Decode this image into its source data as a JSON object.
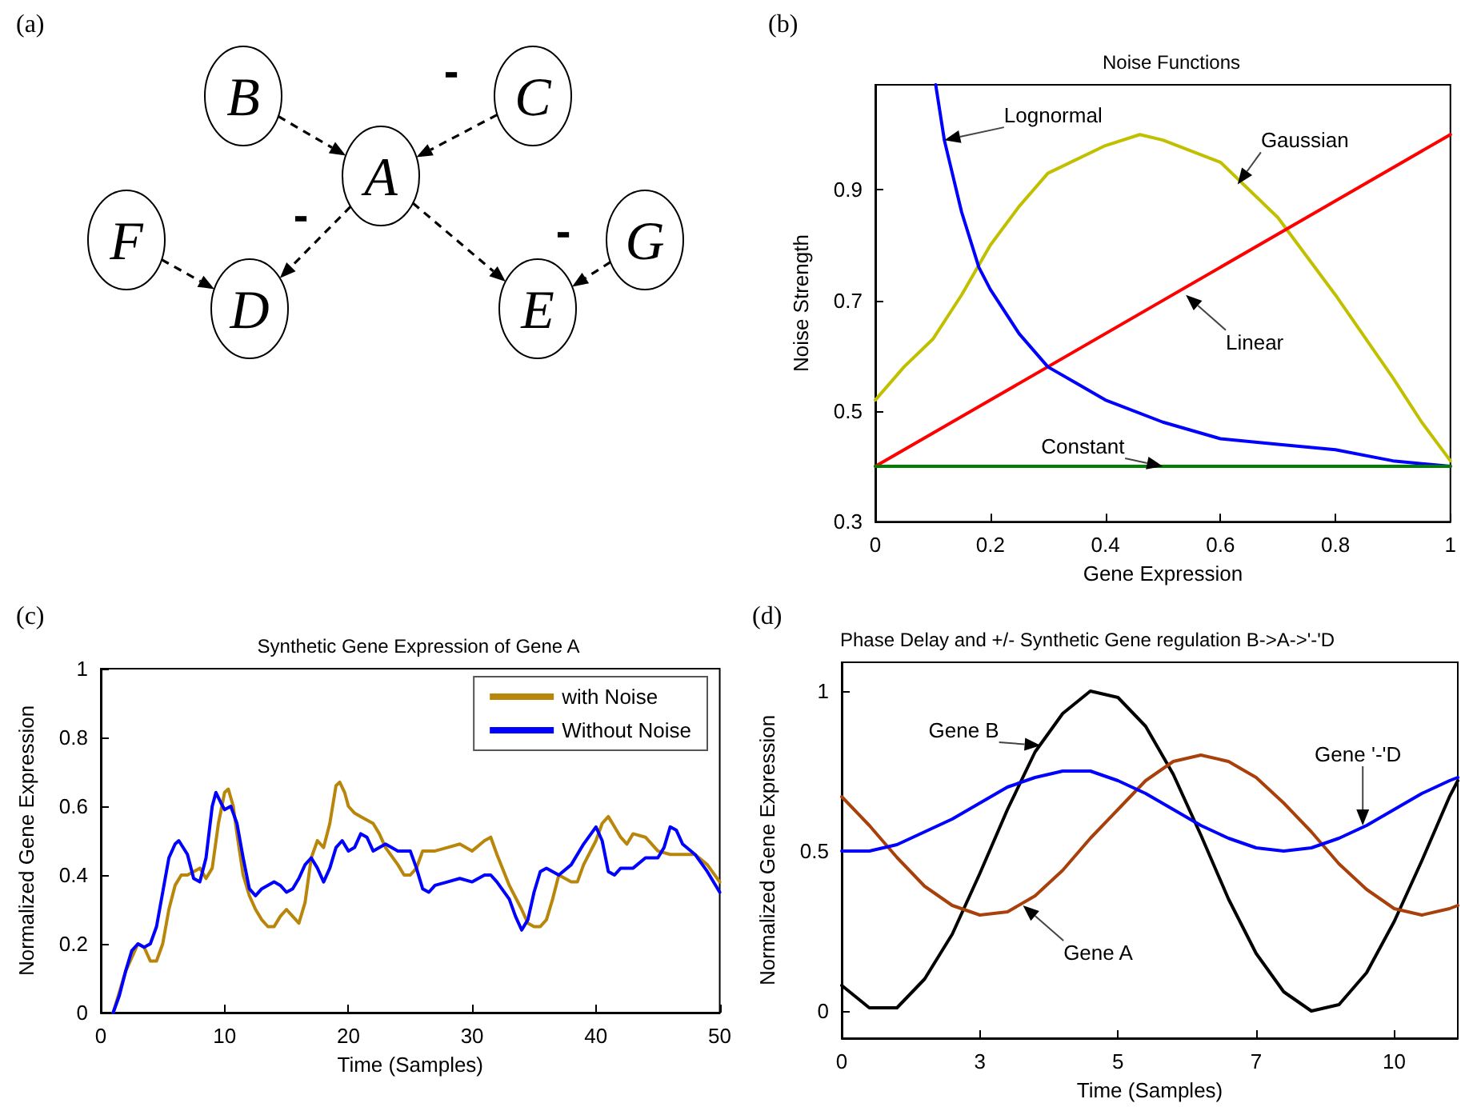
{
  "chart_data": [
    {
      "type": "other",
      "annotations": [
        "(a)",
        "A",
        "B",
        "C",
        "D",
        "E",
        "F",
        "G",
        "-",
        "-",
        "-"
      ]
    },
    {
      "type": "line",
      "title": "Noise Functions",
      "xlabel": "Gene Expression",
      "ylabel": "Noise Strength",
      "xlim": [
        0,
        1
      ],
      "ylim": [
        0.3,
        1.09
      ],
      "xticks": [
        0,
        0.2,
        0.4,
        0.6,
        0.8,
        1
      ],
      "yticks": [
        0.3,
        0.5,
        0.7,
        0.9
      ],
      "series": [
        {
          "color": "#c0c000",
          "x": [
            0,
            0.05,
            0.1,
            0.15,
            0.2,
            0.25,
            0.3,
            0.4,
            0.46,
            0.5,
            0.6,
            0.7,
            0.8,
            0.9,
            0.95,
            1
          ],
          "values": [
            0.52,
            0.58,
            0.63,
            0.71,
            0.8,
            0.87,
            0.93,
            0.98,
            1.0,
            0.99,
            0.95,
            0.85,
            0.71,
            0.56,
            0.48,
            0.41
          ]
        },
        {
          "color": "#ff0000",
          "x": [
            0,
            1
          ],
          "values": [
            0.4,
            1.0
          ]
        },
        {
          "color": "#0000ff",
          "x": [
            0.105,
            0.12,
            0.15,
            0.18,
            0.2,
            0.25,
            0.3,
            0.35,
            0.4,
            0.5,
            0.6,
            0.7,
            0.8,
            0.9,
            1
          ],
          "values": [
            1.09,
            0.99,
            0.86,
            0.76,
            0.72,
            0.64,
            0.58,
            0.55,
            0.52,
            0.48,
            0.45,
            0.44,
            0.43,
            0.41,
            0.4
          ]
        },
        {
          "color": "#008000",
          "x": [
            0,
            1
          ],
          "values": [
            0.4,
            0.4
          ]
        }
      ],
      "annotations": [
        "(b)",
        {
          "text": "Lognormal",
          "x": 0.12,
          "y": 0.99
        },
        {
          "text": "Gaussian",
          "x": 0.63,
          "y": 0.91
        },
        {
          "text": "Linear",
          "x": 0.54,
          "y": 0.71
        },
        {
          "text": "Constant",
          "x": 0.5,
          "y": 0.4
        }
      ]
    },
    {
      "type": "line",
      "title": "Synthetic Gene Expression of Gene A",
      "xlabel": "Time (Samples)",
      "ylabel": "Normalized Gene Expression",
      "xlim": [
        0,
        50
      ],
      "ylim": [
        0,
        1
      ],
      "xticks": [
        0,
        10,
        20,
        30,
        40,
        50
      ],
      "yticks": [
        0,
        0.2,
        0.4,
        0.6,
        0.8,
        1
      ],
      "legend": "top right",
      "series": [
        {
          "name": "with Noise",
          "color": "#b8860b",
          "x": [
            1,
            2,
            3,
            3.5,
            4,
            4.5,
            5,
            5.5,
            6,
            6.5,
            7,
            8,
            8.5,
            9,
            9.5,
            10,
            10.3,
            10.7,
            11,
            11.5,
            12,
            12.5,
            13,
            13.5,
            14,
            14.5,
            15,
            15.5,
            16,
            16.5,
            17,
            17.5,
            18,
            18.5,
            19,
            19.3,
            19.7,
            20,
            20.5,
            21,
            22,
            22.5,
            23,
            24,
            24.5,
            25,
            25.5,
            26,
            27,
            28,
            29,
            30,
            31,
            31.5,
            32,
            33,
            34,
            34.5,
            35,
            35.5,
            36,
            36.5,
            37,
            38,
            38.5,
            39,
            40,
            40.5,
            41,
            42,
            42.5,
            43,
            44,
            45,
            46,
            47,
            48,
            49,
            50
          ],
          "values": [
            0,
            0.12,
            0.2,
            0.19,
            0.15,
            0.15,
            0.2,
            0.3,
            0.37,
            0.4,
            0.4,
            0.42,
            0.39,
            0.42,
            0.55,
            0.64,
            0.65,
            0.6,
            0.52,
            0.4,
            0.34,
            0.3,
            0.27,
            0.25,
            0.25,
            0.28,
            0.3,
            0.28,
            0.26,
            0.32,
            0.45,
            0.5,
            0.48,
            0.55,
            0.66,
            0.67,
            0.64,
            0.6,
            0.58,
            0.57,
            0.55,
            0.52,
            0.48,
            0.43,
            0.4,
            0.4,
            0.42,
            0.47,
            0.47,
            0.48,
            0.49,
            0.47,
            0.5,
            0.51,
            0.46,
            0.37,
            0.3,
            0.26,
            0.25,
            0.25,
            0.27,
            0.33,
            0.4,
            0.38,
            0.38,
            0.43,
            0.5,
            0.55,
            0.57,
            0.51,
            0.49,
            0.52,
            0.51,
            0.47,
            0.46,
            0.46,
            0.46,
            0.43,
            0.38
          ]
        },
        {
          "name": "Without Noise",
          "color": "#0000ff",
          "x": [
            1,
            1.5,
            2,
            2.5,
            3,
            3.5,
            4,
            4.5,
            5,
            5.5,
            6,
            6.3,
            7,
            7.5,
            8,
            8.5,
            9,
            9.3,
            9.7,
            10,
            10.5,
            11,
            11.5,
            12,
            12.5,
            13,
            14,
            14.5,
            15,
            15.5,
            16,
            16.5,
            17,
            17.5,
            18,
            18.5,
            19,
            19.5,
            20,
            20.5,
            21,
            21.5,
            22,
            23,
            24,
            25,
            25.5,
            26,
            26.5,
            27,
            28,
            29,
            30,
            31,
            31.5,
            32,
            33,
            33.5,
            34,
            34.5,
            35,
            35.5,
            36,
            37,
            38,
            39,
            40,
            40.5,
            41,
            41.5,
            42,
            43,
            44,
            45,
            45.5,
            46,
            46.5,
            47,
            48,
            49,
            50
          ],
          "values": [
            0,
            0.05,
            0.12,
            0.18,
            0.2,
            0.19,
            0.2,
            0.25,
            0.35,
            0.45,
            0.49,
            0.5,
            0.46,
            0.39,
            0.38,
            0.45,
            0.6,
            0.64,
            0.61,
            0.59,
            0.6,
            0.55,
            0.45,
            0.36,
            0.34,
            0.36,
            0.38,
            0.37,
            0.35,
            0.36,
            0.39,
            0.43,
            0.45,
            0.42,
            0.38,
            0.42,
            0.48,
            0.5,
            0.47,
            0.48,
            0.52,
            0.51,
            0.47,
            0.49,
            0.47,
            0.47,
            0.42,
            0.36,
            0.35,
            0.37,
            0.38,
            0.39,
            0.38,
            0.4,
            0.4,
            0.38,
            0.33,
            0.28,
            0.24,
            0.27,
            0.35,
            0.41,
            0.42,
            0.4,
            0.43,
            0.49,
            0.54,
            0.5,
            0.41,
            0.4,
            0.42,
            0.42,
            0.45,
            0.45,
            0.48,
            0.54,
            0.53,
            0.49,
            0.46,
            0.41,
            0.35
          ]
        }
      ],
      "annotations": [
        "(c)"
      ]
    },
    {
      "type": "line",
      "title": "Phase Delay and +/- Synthetic Gene regulation B->A->'-'D",
      "xlabel": "Time (Samples)",
      "ylabel": "Normalized Gene Expression",
      "xlim": [
        0,
        11.15
      ],
      "ylim": [
        -0.085,
        1.09
      ],
      "xticks": [
        0,
        {
          "value": 2.5,
          "label": "3"
        },
        5,
        {
          "value": 7.5,
          "label": "7"
        },
        10
      ],
      "yticks": [
        0,
        0.5,
        1
      ],
      "x": [
        0,
        0.5,
        1,
        1.5,
        2,
        2.5,
        3,
        3.5,
        4,
        4.5,
        5,
        5.5,
        6,
        6.5,
        7,
        7.5,
        8,
        8.5,
        9,
        9.5,
        10,
        10.5,
        11,
        11.15
      ],
      "series": [
        {
          "color": "#000000",
          "values": [
            0.08,
            0.01,
            0.01,
            0.1,
            0.24,
            0.43,
            0.63,
            0.81,
            0.93,
            1.0,
            0.98,
            0.89,
            0.74,
            0.55,
            0.35,
            0.18,
            0.06,
            0.0,
            0.02,
            0.12,
            0.28,
            0.47,
            0.67,
            0.72
          ]
        },
        {
          "color": "#a8400c",
          "values": [
            0.67,
            0.58,
            0.48,
            0.39,
            0.33,
            0.3,
            0.31,
            0.36,
            0.44,
            0.54,
            0.63,
            0.72,
            0.78,
            0.8,
            0.78,
            0.73,
            0.65,
            0.56,
            0.46,
            0.38,
            0.32,
            0.3,
            0.32,
            0.33
          ]
        },
        {
          "color": "#0000ff",
          "values": [
            0.5,
            0.5,
            0.52,
            0.56,
            0.6,
            0.65,
            0.7,
            0.73,
            0.75,
            0.75,
            0.72,
            0.68,
            0.63,
            0.58,
            0.54,
            0.51,
            0.5,
            0.51,
            0.54,
            0.58,
            0.63,
            0.68,
            0.72,
            0.73
          ]
        }
      ],
      "annotations": [
        "(d)",
        {
          "text": "Gene B",
          "x": 3.6,
          "y": 0.83
        },
        {
          "text": "Gene A",
          "x": 3.28,
          "y": 0.33
        },
        {
          "text": "Gene '-'D",
          "x": 9.43,
          "y": 0.58
        }
      ]
    }
  ]
}
